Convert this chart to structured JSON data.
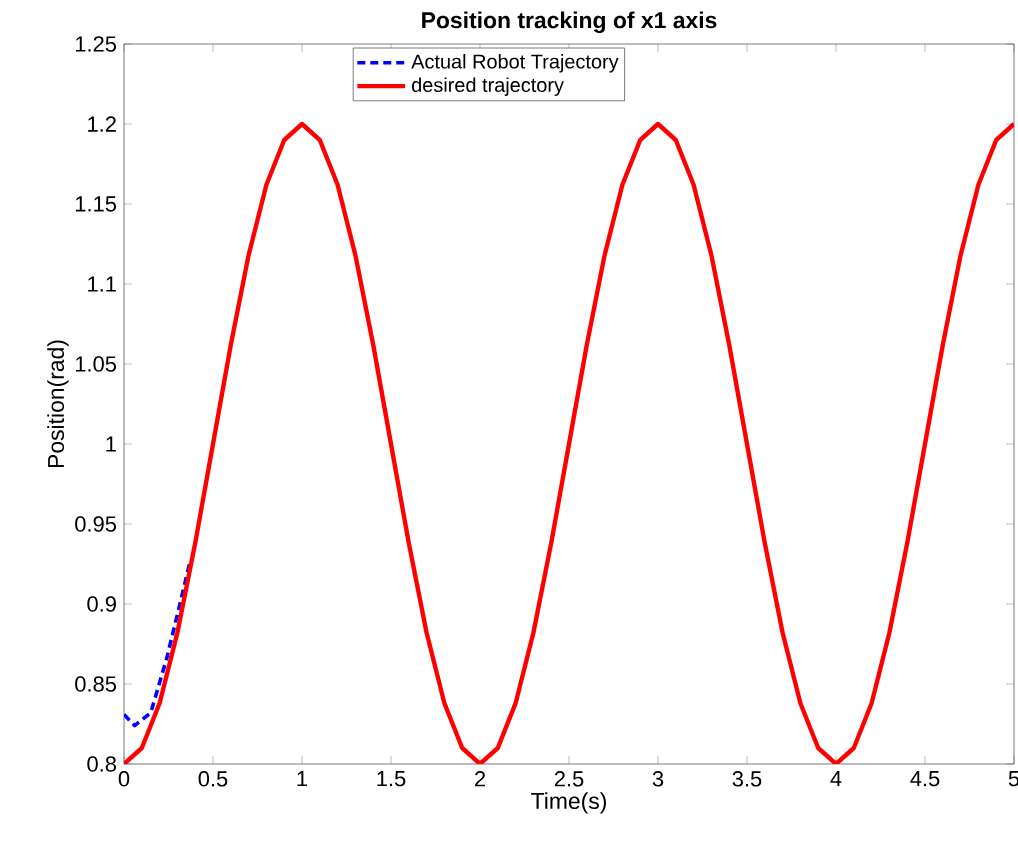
{
  "chart_data": {
    "type": "line",
    "title": "Position tracking of x1 axis",
    "xlabel": "Time(s)",
    "ylabel": "Position(rad)",
    "xlim": [
      0,
      5
    ],
    "ylim": [
      0.8,
      1.25
    ],
    "xticks": [
      0,
      0.5,
      1,
      1.5,
      2,
      2.5,
      3,
      3.5,
      4,
      4.5,
      5
    ],
    "yticks": [
      0.8,
      0.85,
      0.9,
      0.95,
      1,
      1.05,
      1.1,
      1.15,
      1.2,
      1.25
    ],
    "grid": false,
    "legend": "top",
    "series": [
      {
        "name": "Actual Robot Trajectory",
        "color": "#0000ff",
        "line_style": "dashed",
        "x": [
          0,
          0.06,
          0.15,
          0.24,
          0.31,
          0.37
        ],
        "values": [
          0.831,
          0.824,
          0.832,
          0.866,
          0.898,
          0.926
        ]
      },
      {
        "name": "desired trajectory",
        "color": "#ff0000",
        "line_style": "solid",
        "x": [
          0,
          0.1,
          0.2,
          0.3,
          0.4,
          0.5,
          0.6,
          0.7,
          0.8,
          0.9,
          1,
          1.1,
          1.2,
          1.3,
          1.4,
          1.5,
          1.6,
          1.7,
          1.8,
          1.9,
          2,
          2.1,
          2.2,
          2.3,
          2.4,
          2.5,
          2.6,
          2.7,
          2.8,
          2.9,
          3,
          3.1,
          3.2,
          3.3,
          3.4,
          3.5,
          3.6,
          3.7,
          3.8,
          3.9,
          4,
          4.1,
          4.2,
          4.3,
          4.4,
          4.5,
          4.6,
          4.7,
          4.8,
          4.9,
          5
        ],
        "values": [
          0.8,
          0.81,
          0.838,
          0.882,
          0.938,
          1.0,
          1.062,
          1.118,
          1.162,
          1.19,
          1.2,
          1.19,
          1.162,
          1.118,
          1.062,
          1.0,
          0.938,
          0.882,
          0.838,
          0.81,
          0.8,
          0.81,
          0.838,
          0.882,
          0.938,
          1.0,
          1.062,
          1.118,
          1.162,
          1.19,
          1.2,
          1.19,
          1.162,
          1.118,
          1.062,
          1.0,
          0.938,
          0.882,
          0.838,
          0.81,
          0.8,
          0.81,
          0.838,
          0.882,
          0.938,
          1.0,
          1.062,
          1.118,
          1.162,
          1.19,
          1.2
        ]
      }
    ]
  }
}
